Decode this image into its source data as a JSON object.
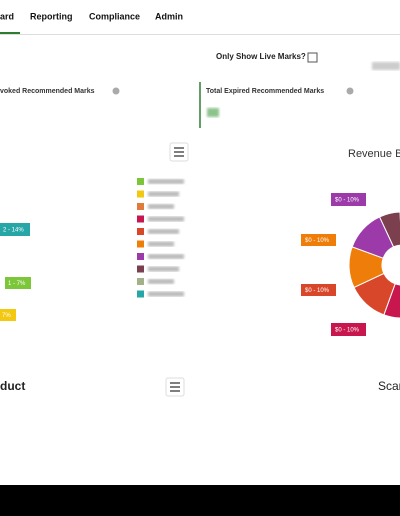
{
  "nav": {
    "items": [
      "ard",
      "Reporting",
      "Compliance",
      "Admin"
    ]
  },
  "filter": {
    "label": "Only Show Live Marks?"
  },
  "cards": [
    "voked Recommended Marks",
    "Total Expired Recommended Marks"
  ],
  "left_chart": {
    "labels": [
      "2 - 14%",
      "1 - 7%",
      "7%"
    ]
  },
  "revenue_chart": {
    "title": "Revenue B",
    "labels": [
      "$0 - 10%",
      "$0 - 10%",
      "$0 - 10%",
      "$0 - 10%"
    ]
  },
  "product_panel": {
    "title": "duct"
  },
  "scan_panel": {
    "title": "Scar"
  }
}
